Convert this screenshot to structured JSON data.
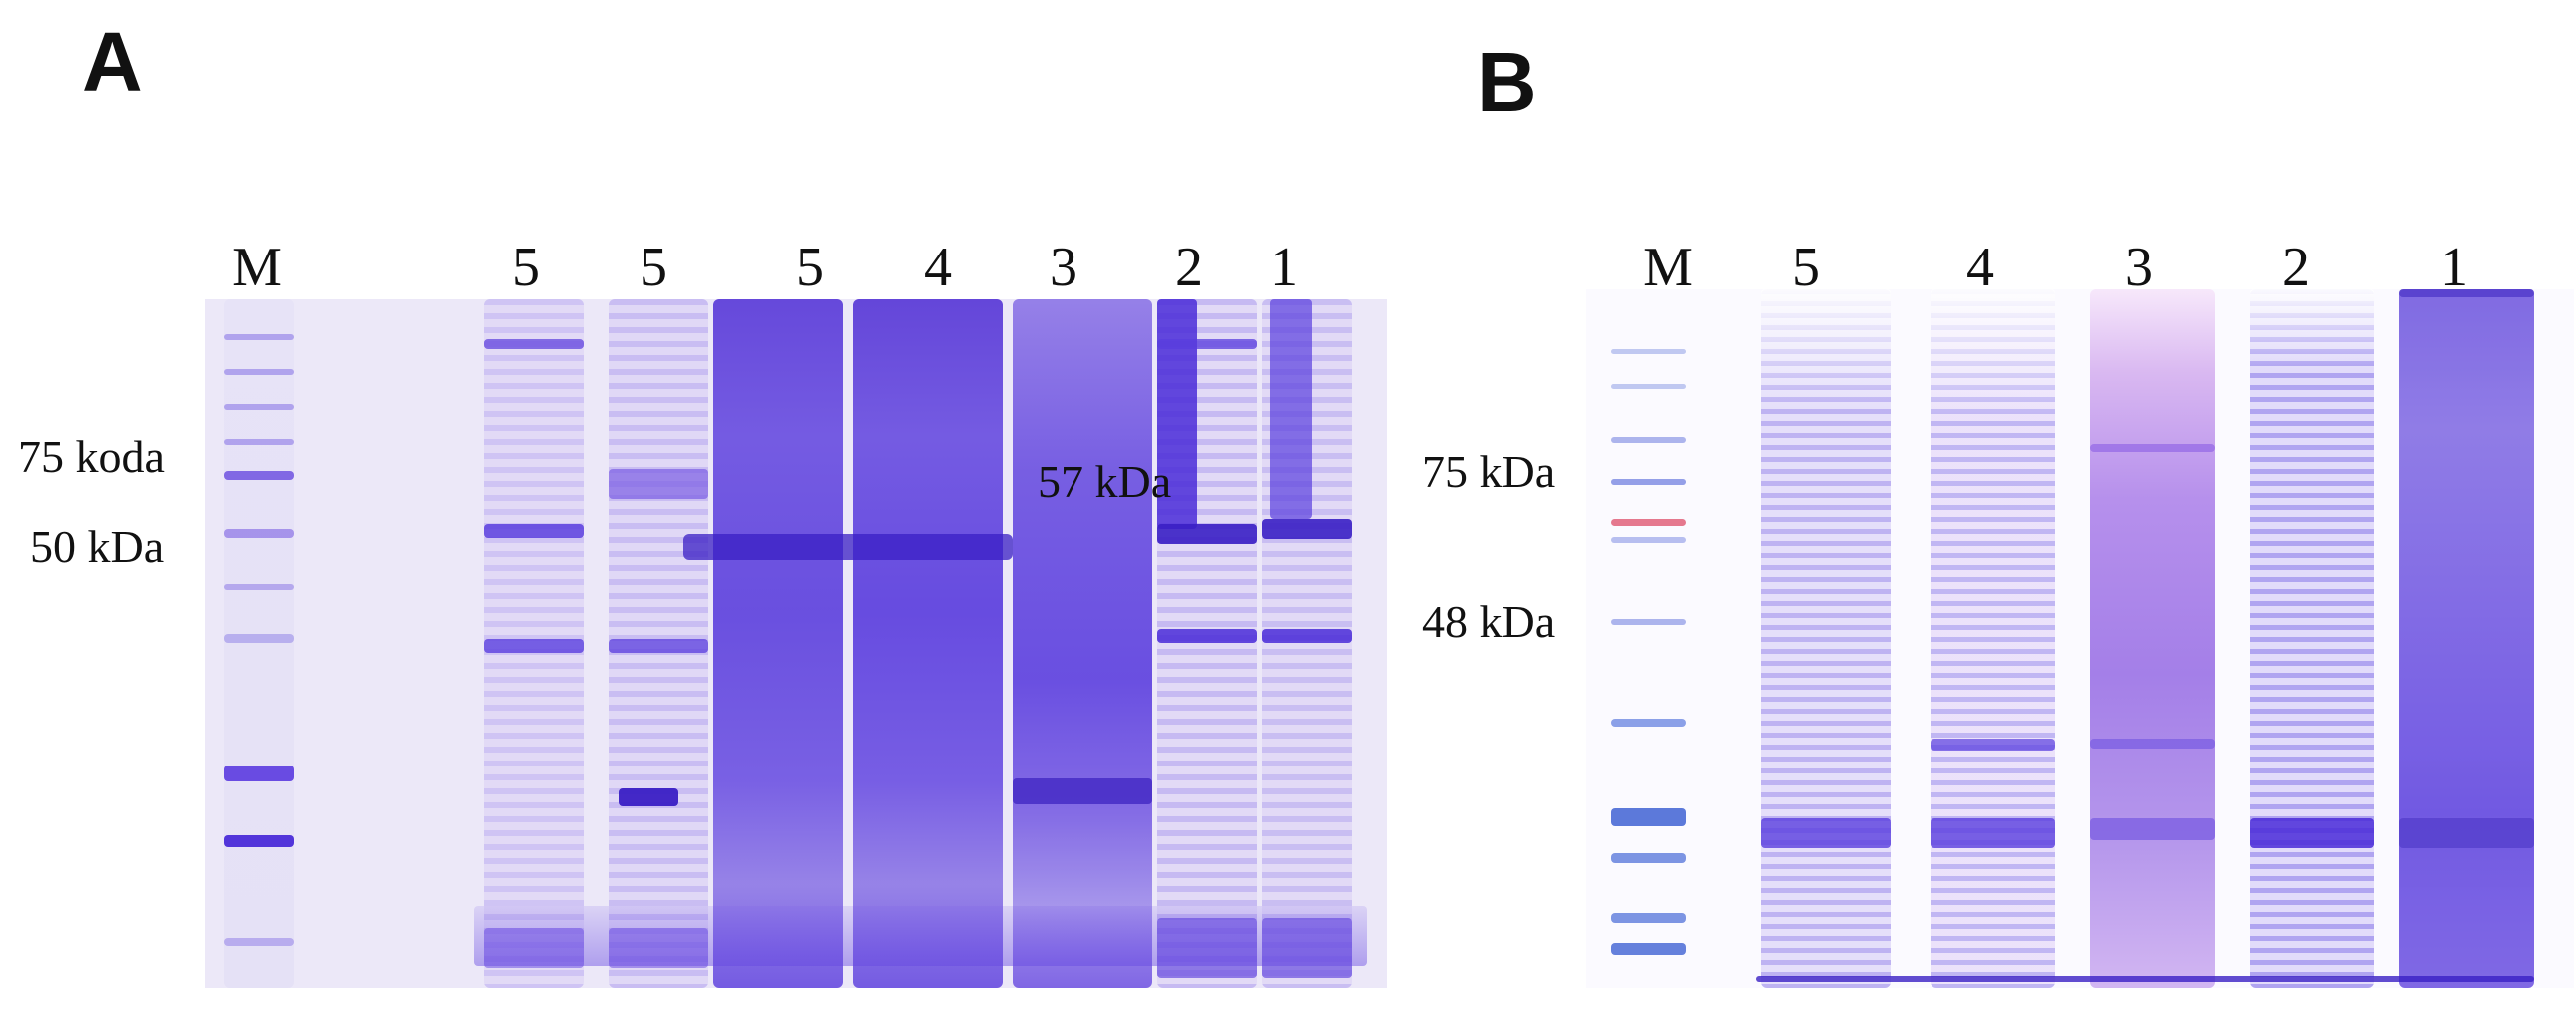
{
  "panel_a": {
    "letter": "A",
    "lane_labels": [
      "M",
      "5",
      "5",
      "5",
      "4",
      "3",
      "2",
      "1"
    ],
    "mw_labels": [
      "75 koda",
      "50 kDa"
    ],
    "annotation": "57 kDa"
  },
  "panel_b": {
    "letter": "B",
    "lane_labels": [
      "M",
      "5",
      "4",
      "3",
      "2",
      "1"
    ],
    "mw_labels": [
      "75 kDa",
      "48 kDa"
    ]
  },
  "colors": {
    "stain": "#5b3be0",
    "stain_dark": "#3a1fc4",
    "gel_a_background": "#ece8f8",
    "gel_b_background": "#fbfaff",
    "marker_pink": "#e0607a"
  }
}
